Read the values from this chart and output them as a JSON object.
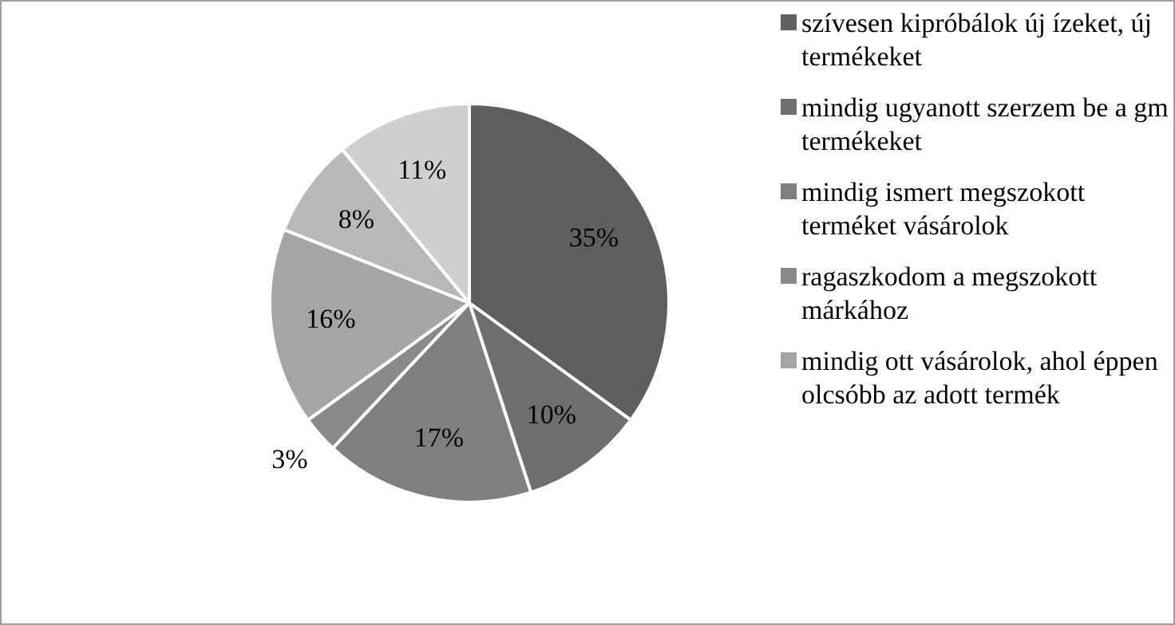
{
  "chart_data": {
    "type": "pie",
    "categories": [
      "szívesen kipróbálok új ízeket, új termékeket",
      "mindig ugyanott szerzem be a gm termékeket",
      "mindig ismert megszokott terméket vásárolok",
      "ragaszkodom a megszokott márkához",
      "mindig ott vásárolok, ahol éppen olcsóbb az adott termék",
      null,
      null
    ],
    "values": [
      35,
      10,
      17,
      3,
      16,
      8,
      11
    ],
    "colors": [
      "#5f5f5f",
      "#6f6f6f",
      "#7f7f7f",
      "#8a8a8a",
      "#a5a5a5",
      "#b8b8b8",
      "#cfcfcf"
    ],
    "value_labels": [
      "35%",
      "10%",
      "17%",
      "3%",
      "16%",
      "8%",
      "11%"
    ],
    "legend": "right"
  }
}
